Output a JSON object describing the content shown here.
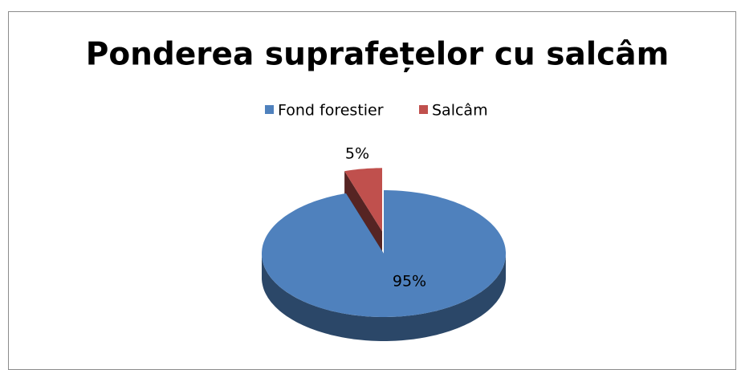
{
  "chart_data": {
    "type": "pie",
    "title": "Ponderea suprafețelor cu salcâm",
    "categories": [
      "Fond forestier",
      "Salcâm"
    ],
    "values": [
      95,
      5
    ],
    "value_labels": [
      "95%",
      "5%"
    ],
    "colors": [
      "#4f81bd",
      "#c0504d"
    ],
    "legend": "top"
  }
}
